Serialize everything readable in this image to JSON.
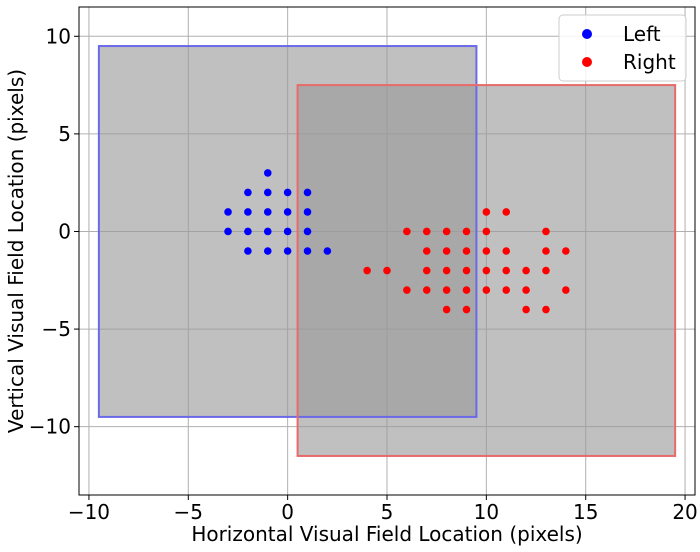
{
  "chart_data": {
    "type": "scatter",
    "xlabel": "Horizontal Visual Field Location (pixels)",
    "ylabel": "Vertical Visual Field Location (pixels)",
    "xlim": [
      -10.5,
      20.5
    ],
    "ylim": [
      -13.5,
      11.5
    ],
    "xticks": [
      -10,
      -5,
      0,
      5,
      10,
      15,
      20
    ],
    "yticks": [
      -10,
      -5,
      0,
      5,
      10
    ],
    "grid": true,
    "legend_position": "top-right",
    "regions": [
      {
        "series": "Left",
        "x": [
          -9.5,
          9.5
        ],
        "y": [
          -9.5,
          9.5
        ],
        "edge_color": "#6a6ae8",
        "fill_color": "#999999"
      },
      {
        "series": "Right",
        "x": [
          0.5,
          19.5
        ],
        "y": [
          -11.5,
          7.5
        ],
        "edge_color": "#e86a6a",
        "fill_color": "#999999"
      }
    ],
    "series": [
      {
        "name": "Left",
        "color": "#0000ff",
        "points": [
          [
            -1,
            3
          ],
          [
            -2,
            2
          ],
          [
            -1,
            2
          ],
          [
            0,
            2
          ],
          [
            1,
            2
          ],
          [
            -3,
            1
          ],
          [
            -2,
            1
          ],
          [
            -1,
            1
          ],
          [
            0,
            1
          ],
          [
            1,
            1
          ],
          [
            -3,
            0
          ],
          [
            -2,
            0
          ],
          [
            -1,
            0
          ],
          [
            0,
            0
          ],
          [
            1,
            0
          ],
          [
            -2,
            -1
          ],
          [
            -1,
            -1
          ],
          [
            0,
            -1
          ],
          [
            1,
            -1
          ],
          [
            2,
            -1
          ]
        ]
      },
      {
        "name": "Right",
        "color": "#ff0000",
        "points": [
          [
            10,
            1
          ],
          [
            11,
            1
          ],
          [
            6,
            0
          ],
          [
            7,
            0
          ],
          [
            8,
            0
          ],
          [
            9,
            0
          ],
          [
            10,
            0
          ],
          [
            13,
            0
          ],
          [
            7,
            -1
          ],
          [
            8,
            -1
          ],
          [
            9,
            -1
          ],
          [
            10,
            -1
          ],
          [
            11,
            -1
          ],
          [
            13,
            -1
          ],
          [
            14,
            -1
          ],
          [
            4,
            -2
          ],
          [
            5,
            -2
          ],
          [
            7,
            -2
          ],
          [
            8,
            -2
          ],
          [
            9,
            -2
          ],
          [
            10,
            -2
          ],
          [
            11,
            -2
          ],
          [
            12,
            -2
          ],
          [
            13,
            -2
          ],
          [
            6,
            -3
          ],
          [
            7,
            -3
          ],
          [
            8,
            -3
          ],
          [
            9,
            -3
          ],
          [
            10,
            -3
          ],
          [
            11,
            -3
          ],
          [
            12,
            -3
          ],
          [
            14,
            -3
          ],
          [
            8,
            -4
          ],
          [
            9,
            -4
          ],
          [
            12,
            -4
          ],
          [
            13,
            -4
          ]
        ]
      }
    ]
  }
}
